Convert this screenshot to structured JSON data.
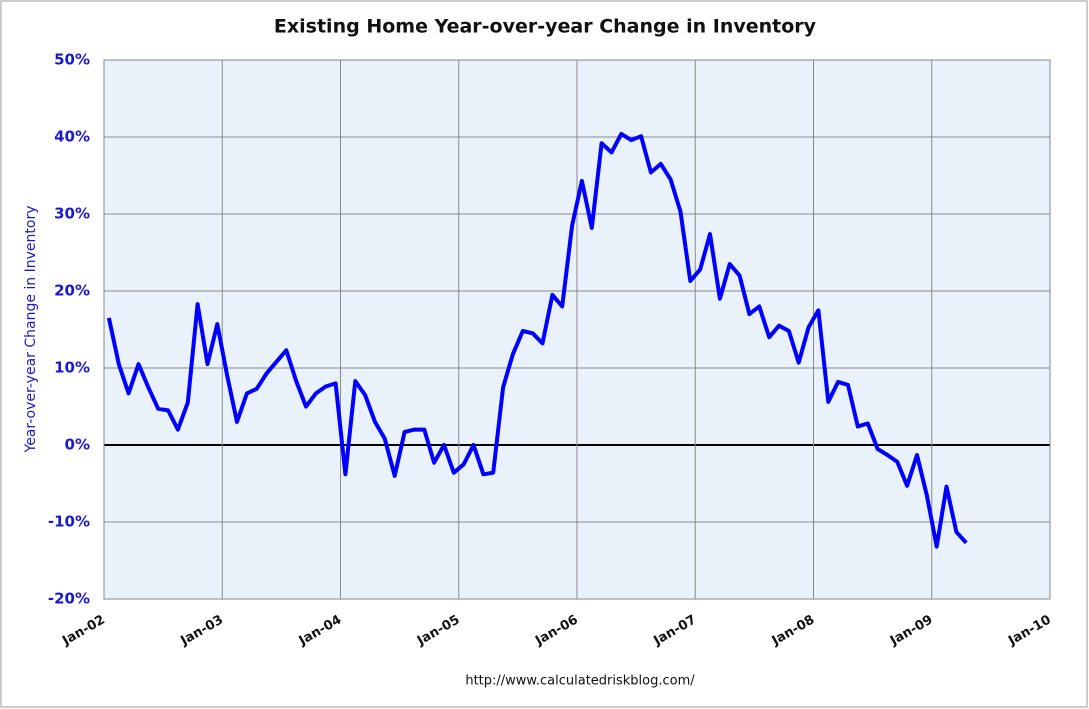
{
  "chart_data": {
    "type": "line",
    "title": "Existing Home Year-over-year Change in Inventory",
    "y_label": "Year-over-year Change in Inventory",
    "source": "http://www.calculatedriskblog.com/",
    "x": [
      "2002-01",
      "2002-02",
      "2002-03",
      "2002-04",
      "2002-05",
      "2002-06",
      "2002-07",
      "2002-08",
      "2002-09",
      "2002-10",
      "2002-11",
      "2002-12",
      "2003-01",
      "2003-02",
      "2003-03",
      "2003-04",
      "2003-05",
      "2003-06",
      "2003-07",
      "2003-08",
      "2003-09",
      "2003-10",
      "2003-11",
      "2003-12",
      "2004-01",
      "2004-02",
      "2004-03",
      "2004-04",
      "2004-05",
      "2004-06",
      "2004-07",
      "2004-08",
      "2004-09",
      "2004-10",
      "2004-11",
      "2004-12",
      "2005-01",
      "2005-02",
      "2005-03",
      "2005-04",
      "2005-05",
      "2005-06",
      "2005-07",
      "2005-08",
      "2005-09",
      "2005-10",
      "2005-11",
      "2005-12",
      "2006-01",
      "2006-02",
      "2006-03",
      "2006-04",
      "2006-05",
      "2006-06",
      "2006-07",
      "2006-08",
      "2006-09",
      "2006-10",
      "2006-11",
      "2006-12",
      "2007-01",
      "2007-02",
      "2007-03",
      "2007-04",
      "2007-05",
      "2007-06",
      "2007-07",
      "2007-08",
      "2007-09",
      "2007-10",
      "2007-11",
      "2007-12",
      "2008-01",
      "2008-02",
      "2008-03",
      "2008-04",
      "2008-05",
      "2008-06",
      "2008-07",
      "2008-08",
      "2008-09",
      "2008-10",
      "2008-11",
      "2008-12",
      "2009-01",
      "2009-02",
      "2009-03",
      "2009-04"
    ],
    "series": [
      {
        "name": "Year-over-year Change in Inventory",
        "color": "#0000ff",
        "values": [
          16.5,
          10.5,
          6.7,
          10.5,
          7.5,
          4.7,
          4.5,
          2.0,
          5.5,
          18.3,
          10.5,
          15.7,
          9.0,
          3.0,
          6.7,
          7.3,
          9.3,
          10.8,
          12.3,
          8.3,
          5.0,
          6.7,
          7.6,
          8.0,
          -3.8,
          8.3,
          6.5,
          3.0,
          0.8,
          -4.0,
          1.7,
          2.0,
          2.0,
          -2.3,
          0.0,
          -3.6,
          -2.5,
          0.0,
          -3.8,
          -3.6,
          7.5,
          11.8,
          14.8,
          14.5,
          13.2,
          19.5,
          18.0,
          28.5,
          34.3,
          28.2,
          39.2,
          38.0,
          40.4,
          39.6,
          40.1,
          35.4,
          36.5,
          34.5,
          30.3,
          21.3,
          22.8,
          27.4,
          19.0,
          23.5,
          22.0,
          17.0,
          18.0,
          14.0,
          15.5,
          14.8,
          10.7,
          15.3,
          17.5,
          5.6,
          8.2,
          7.8,
          2.4,
          2.8,
          -0.5,
          -1.3,
          -2.2,
          -5.3,
          -1.3,
          -6.5,
          -13.2,
          -5.4,
          -11.3,
          -12.7
        ]
      }
    ],
    "xlim": [
      "2002-01",
      "2010-01"
    ],
    "xticks": [
      {
        "value": "2002-01",
        "label": "Jan-02"
      },
      {
        "value": "2003-01",
        "label": "Jan-03"
      },
      {
        "value": "2004-01",
        "label": "Jan-04"
      },
      {
        "value": "2005-01",
        "label": "Jan-05"
      },
      {
        "value": "2006-01",
        "label": "Jan-06"
      },
      {
        "value": "2007-01",
        "label": "Jan-07"
      },
      {
        "value": "2008-01",
        "label": "Jan-08"
      },
      {
        "value": "2009-01",
        "label": "Jan-09"
      },
      {
        "value": "2010-01",
        "label": "Jan-10"
      }
    ],
    "ylim": [
      -20,
      50
    ],
    "yticks": [
      {
        "value": -20,
        "label": "-20%"
      },
      {
        "value": -10,
        "label": "-10%"
      },
      {
        "value": 0,
        "label": "0%"
      },
      {
        "value": 10,
        "label": "10%"
      },
      {
        "value": 20,
        "label": "20%"
      },
      {
        "value": 30,
        "label": "30%"
      },
      {
        "value": 40,
        "label": "40%"
      },
      {
        "value": 50,
        "label": "50%"
      }
    ],
    "grid": true
  }
}
